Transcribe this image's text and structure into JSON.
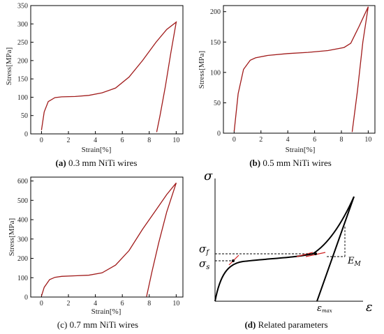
{
  "chart_data": [
    {
      "type": "line",
      "caption_bold": "(a)",
      "caption_rest": " 0.3 mm NiTi wires",
      "xlabel": "Strain[%]",
      "ylabel": "Stress[MPa]",
      "xlim": [
        -0.8,
        10.5
      ],
      "ylim": [
        0,
        350
      ],
      "xticks": [
        0,
        2,
        4,
        6,
        8,
        10
      ],
      "yticks": [
        0,
        50,
        100,
        150,
        200,
        250,
        300,
        350
      ],
      "series": [
        {
          "x": [
            0,
            0.2,
            0.5,
            1.0,
            1.5,
            2.5,
            3.5,
            4.5,
            5.5,
            6.5,
            7.5,
            8.5,
            9.3,
            10.0,
            9.6,
            9.2,
            8.8,
            8.55
          ],
          "y": [
            10,
            60,
            88,
            99,
            101,
            102,
            105,
            112,
            125,
            155,
            200,
            250,
            285,
            305,
            220,
            130,
            50,
            5
          ]
        }
      ]
    },
    {
      "type": "line",
      "caption_bold": "(b)",
      "caption_rest": " 0.5 mm NiTi wires",
      "xlabel": "Strain[%]",
      "ylabel": "Stress[MPa]",
      "xlim": [
        -0.8,
        10.5
      ],
      "ylim": [
        0,
        210
      ],
      "xticks": [
        0,
        2,
        4,
        6,
        8,
        10
      ],
      "yticks": [
        0,
        50,
        100,
        150,
        200
      ],
      "series": [
        {
          "x": [
            0,
            0.3,
            0.7,
            1.2,
            1.6,
            2.5,
            4,
            5.5,
            7,
            8.2,
            8.7,
            9.3,
            10.0,
            9.6,
            9.2,
            8.8
          ],
          "y": [
            3,
            65,
            105,
            120,
            124,
            128,
            131,
            133,
            136,
            141,
            148,
            175,
            208,
            150,
            70,
            2
          ]
        }
      ]
    },
    {
      "type": "line",
      "caption_bold": "",
      "caption_rest": "(c) 0.7 mm NiTi wires",
      "xlabel": "Strain[%]",
      "ylabel": "Stress[MPa]",
      "xlim": [
        -0.8,
        10.5
      ],
      "ylim": [
        0,
        620
      ],
      "xticks": [
        0,
        2,
        4,
        6,
        8,
        10
      ],
      "yticks": [
        0,
        100,
        200,
        300,
        400,
        500,
        600
      ],
      "series": [
        {
          "x": [
            0,
            0.2,
            0.6,
            1.0,
            1.5,
            2.5,
            3.5,
            4.5,
            5.5,
            6.5,
            7.5,
            8.5,
            9.3,
            10.0,
            9.3,
            8.7,
            8.2,
            7.8
          ],
          "y": [
            5,
            50,
            90,
            102,
            107,
            110,
            113,
            125,
            165,
            240,
            350,
            450,
            530,
            590,
            440,
            280,
            130,
            2
          ]
        }
      ]
    },
    {
      "type": "line",
      "caption_bold": "(d)",
      "caption_rest": " Related parameters",
      "ylabel_symbol": "σ",
      "xlabel_symbol": "ε",
      "sigma_f": "σ",
      "sigma_f_sub": "f",
      "sigma_s": "σ",
      "sigma_s_sub": "s",
      "modulus": "E",
      "modulus_sub": "M",
      "eps_max": "ε",
      "eps_max_sub": "max"
    }
  ]
}
